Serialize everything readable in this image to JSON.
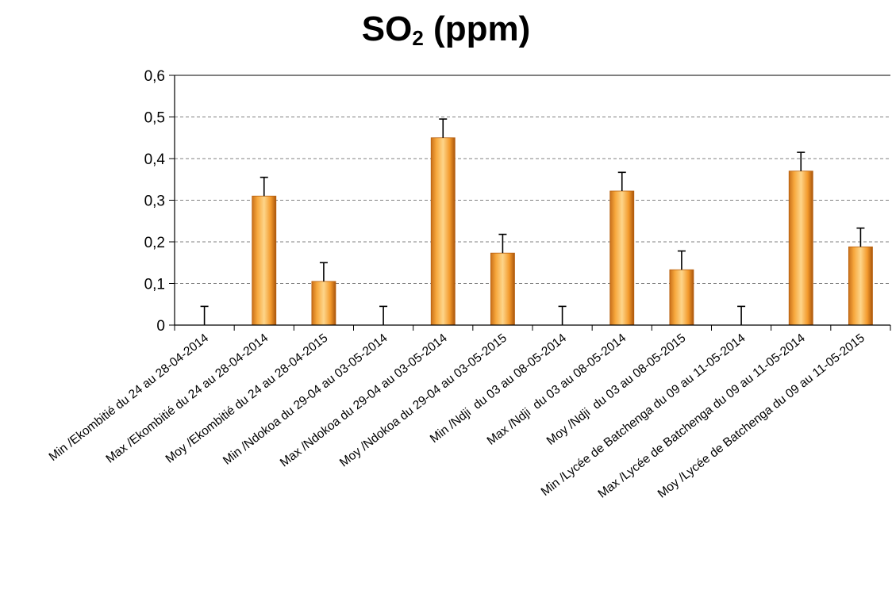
{
  "chart_data": {
    "type": "bar",
    "title_main": "SO",
    "title_sub": "2",
    "title_units": " (ppm)",
    "categories": [
      "Min /Ekombitié du 24 au 28-04-2014",
      "Max /Ekombitié du 24 au 28-04-2014",
      "Moy /Ekombitié du 24 au 28-04-2015",
      "Min /Ndokoa du 29-04 au 03-05-2014",
      "Max /Ndokoa du 29-04 au 03-05-2014",
      "Moy /Ndokoa du 29-04 au 03-05-2015",
      "Min /Ndji  du 03 au 08-05-2014",
      "Max /Ndji  du 03 au 08-05-2014",
      "Moy /Ndji  du 03 au 08-05-2015",
      "Min /Lycée de Batchenga du 09 au 11-05-2014",
      "Max /Lycée de Batchenga du 09 au 11-05-2014",
      "Moy /Lycée de Batchenga du 09 au 11-05-2015"
    ],
    "values": [
      0,
      0.31,
      0.105,
      0,
      0.45,
      0.173,
      0,
      0.322,
      0.133,
      0,
      0.37,
      0.188
    ],
    "error_plus": [
      0.045,
      0.045,
      0.045,
      0.045,
      0.045,
      0.045,
      0.045,
      0.045,
      0.045,
      0.045,
      0.045,
      0.045
    ],
    "ylim": [
      0,
      0.6
    ],
    "yticks": [
      0,
      0.1,
      0.2,
      0.3,
      0.4,
      0.5,
      0.6
    ],
    "ytick_labels": [
      "0",
      "0,1",
      "0,2",
      "0,3",
      "0,4",
      "0,5",
      "0,6"
    ],
    "xlabel": "",
    "ylabel": "",
    "grid": "horizontal dashed",
    "legend": "none",
    "colors": {
      "bar_light": "#fdd07a",
      "bar_mid": "#f39a2c",
      "bar_dark": "#b8600e",
      "grid": "#808080",
      "axis": "#000000"
    }
  }
}
